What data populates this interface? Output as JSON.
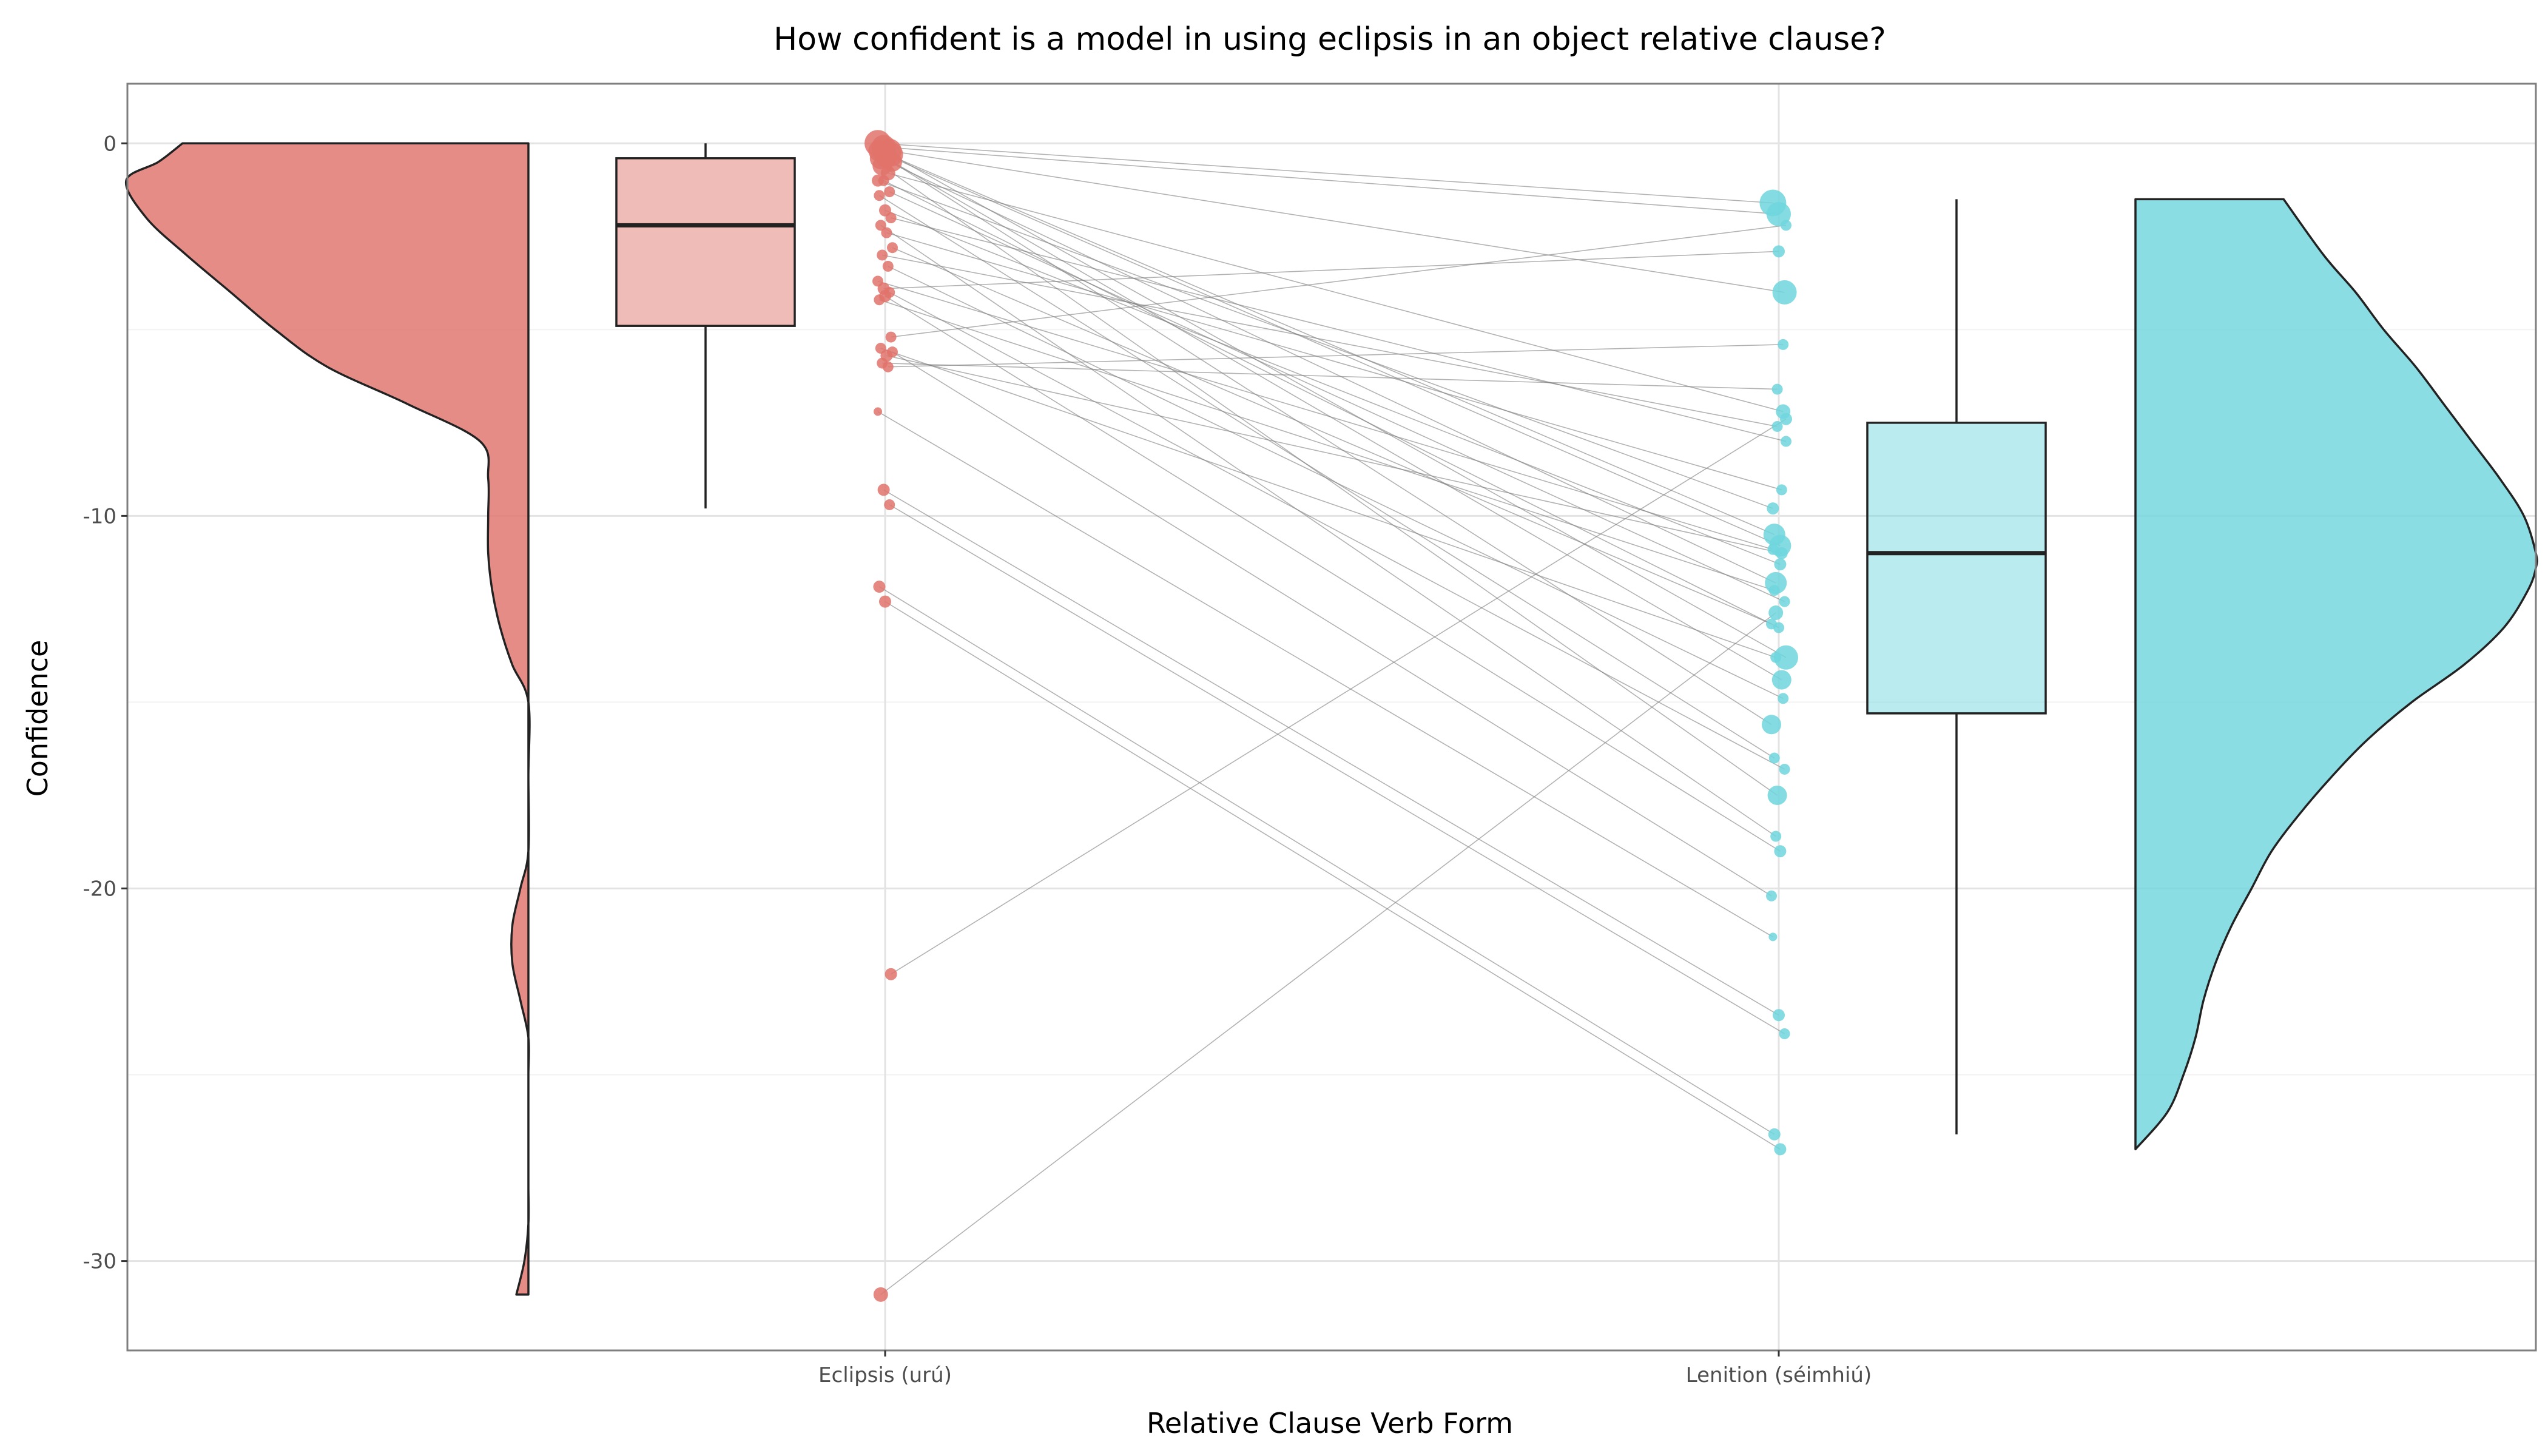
{
  "chart_data": {
    "type": "raincloud",
    "title": "How confident is a model in using eclipsis in an object relative clause?",
    "xlabel": "Relative Clause Verb Form",
    "ylabel": "Confidence",
    "ylim": [
      -32.4,
      1.6
    ],
    "yticks": [
      0,
      -10,
      -20,
      -30
    ],
    "grid": true,
    "categories": [
      "Eclipsis (urú)",
      "Lenition (séimhiú)"
    ],
    "colors": {
      "eclipsis": "#e0736b",
      "lenition": "#6fd6dd",
      "line": "#7f7f7f",
      "box_edge": "#222222"
    },
    "box_stats": [
      {
        "category": "Eclipsis (urú)",
        "q1": -4.9,
        "median": -2.2,
        "q3": -0.4,
        "lower_whisker": -9.8,
        "upper_whisker": 0.0
      },
      {
        "category": "Lenition (séimhiú)",
        "q1": -15.3,
        "median": -11.0,
        "q3": -7.5,
        "lower_whisker": -26.6,
        "upper_whisker": -1.5
      }
    ],
    "density": [
      {
        "category": "Eclipsis (urú)",
        "y": [
          0,
          -0.5,
          -1,
          -2,
          -3,
          -4,
          -5,
          -6,
          -7,
          -8,
          -9,
          -10,
          -11,
          -12,
          -13,
          -14,
          -15,
          -17,
          -19,
          -20,
          -21,
          -22,
          -23,
          -24,
          -25,
          -26,
          -27,
          -28,
          -29,
          -30,
          -30.9
        ],
        "density": [
          0.86,
          0.92,
          1.0,
          0.95,
          0.85,
          0.74,
          0.63,
          0.5,
          0.3,
          0.12,
          0.1,
          0.1,
          0.1,
          0.09,
          0.07,
          0.04,
          0.0,
          0.0,
          0.0,
          0.02,
          0.04,
          0.04,
          0.02,
          0.0,
          0.0,
          0.0,
          0.0,
          0.0,
          0.0,
          0.01,
          0.03
        ]
      },
      {
        "category": "Lenition (séimhiú)",
        "y": [
          -1.5,
          -3,
          -4,
          -5,
          -6,
          -7,
          -8,
          -9,
          -10,
          -11,
          -11.4,
          -12,
          -13,
          -14,
          -15,
          -16,
          -17,
          -18,
          -19,
          -20,
          -21,
          -22,
          -23,
          -24,
          -25,
          -26,
          -27
        ],
        "density": [
          0.37,
          0.47,
          0.55,
          0.62,
          0.7,
          0.77,
          0.84,
          0.91,
          0.97,
          1.0,
          1.0,
          0.98,
          0.92,
          0.82,
          0.69,
          0.58,
          0.49,
          0.41,
          0.34,
          0.29,
          0.24,
          0.2,
          0.17,
          0.15,
          0.12,
          0.08,
          0.0
        ]
      }
    ],
    "paired_points": [
      {
        "eclipsis": 0.0,
        "lenition": -1.6,
        "size": 22
      },
      {
        "eclipsis": -0.1,
        "lenition": -1.9,
        "size": 20
      },
      {
        "eclipsis": -0.2,
        "lenition": -4.0,
        "size": 20
      },
      {
        "eclipsis": -0.2,
        "lenition": -10.5,
        "size": 18
      },
      {
        "eclipsis": -0.3,
        "lenition": -10.8,
        "size": 18
      },
      {
        "eclipsis": -0.3,
        "lenition": -13.8,
        "size": 20
      },
      {
        "eclipsis": -0.4,
        "lenition": -11.8,
        "size": 18
      },
      {
        "eclipsis": -0.4,
        "lenition": -14.4,
        "size": 16
      },
      {
        "eclipsis": -0.5,
        "lenition": -15.6,
        "size": 16
      },
      {
        "eclipsis": -0.6,
        "lenition": -17.5,
        "size": 16
      },
      {
        "eclipsis": -0.8,
        "lenition": -7.2,
        "size": 12
      },
      {
        "eclipsis": -1.0,
        "lenition": -9.8,
        "size": 10
      },
      {
        "eclipsis": -1.0,
        "lenition": -13.0,
        "size": 9
      },
      {
        "eclipsis": -1.3,
        "lenition": -12.3,
        "size": 9
      },
      {
        "eclipsis": -1.4,
        "lenition": -16.5,
        "size": 9
      },
      {
        "eclipsis": -1.8,
        "lenition": -11.3,
        "size": 10
      },
      {
        "eclipsis": -2.0,
        "lenition": -8.0,
        "size": 9
      },
      {
        "eclipsis": -2.2,
        "lenition": -18.6,
        "size": 9
      },
      {
        "eclipsis": -2.4,
        "lenition": -9.3,
        "size": 9
      },
      {
        "eclipsis": -2.8,
        "lenition": -12.9,
        "size": 9
      },
      {
        "eclipsis": -3.0,
        "lenition": -7.6,
        "size": 9
      },
      {
        "eclipsis": -3.3,
        "lenition": -14.9,
        "size": 9
      },
      {
        "eclipsis": -3.7,
        "lenition": -10.9,
        "size": 9
      },
      {
        "eclipsis": -3.9,
        "lenition": -2.9,
        "size": 10
      },
      {
        "eclipsis": -4.0,
        "lenition": -16.8,
        "size": 9
      },
      {
        "eclipsis": -4.2,
        "lenition": -12.0,
        "size": 9
      },
      {
        "eclipsis": -4.1,
        "lenition": -19.0,
        "size": 10
      },
      {
        "eclipsis": -5.2,
        "lenition": -2.2,
        "size": 9
      },
      {
        "eclipsis": -5.5,
        "lenition": -13.8,
        "size": 9
      },
      {
        "eclipsis": -5.7,
        "lenition": -11.0,
        "size": 10
      },
      {
        "eclipsis": -5.6,
        "lenition": -20.2,
        "size": 9
      },
      {
        "eclipsis": -5.9,
        "lenition": -6.6,
        "size": 9
      },
      {
        "eclipsis": -6.0,
        "lenition": -5.4,
        "size": 9
      },
      {
        "eclipsis": -7.2,
        "lenition": -21.3,
        "size": 7
      },
      {
        "eclipsis": -9.3,
        "lenition": -23.4,
        "size": 10
      },
      {
        "eclipsis": -9.7,
        "lenition": -23.9,
        "size": 9
      },
      {
        "eclipsis": -11.9,
        "lenition": -26.6,
        "size": 10
      },
      {
        "eclipsis": -12.3,
        "lenition": -27.0,
        "size": 10
      },
      {
        "eclipsis": -22.3,
        "lenition": -7.4,
        "size": 10
      },
      {
        "eclipsis": -30.9,
        "lenition": -12.6,
        "size": 12
      }
    ]
  }
}
